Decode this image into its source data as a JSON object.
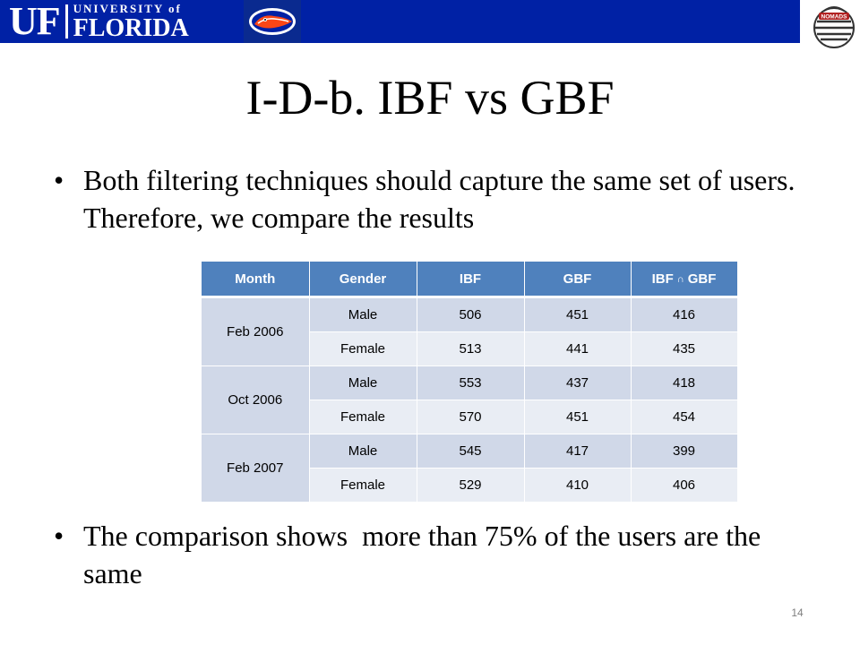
{
  "header": {
    "logo_mono": "UF",
    "logo_university": "UNIVERSITY of",
    "logo_florida": "FLORIDA",
    "logo_right": "NOMADS",
    "banner_color": "#0021a5",
    "gator_icon": "gator-logo-icon"
  },
  "slide": {
    "title": "I-D-b. IBF vs GBF",
    "bullets": [
      "Both filtering techniques should capture the same set of users. Therefore, we compare the results",
      "The comparison shows  more than 75% of the users are the same"
    ],
    "page_number": "14"
  },
  "table": {
    "headers": [
      "Month",
      "Gender",
      "IBF",
      "GBF",
      "IBF",
      "GBF"
    ],
    "header_color": "#4f81bd",
    "months": [
      "Feb 2006",
      "Oct 2006",
      "Feb 2007"
    ],
    "rows": [
      {
        "gender": "Male",
        "ibf": "506",
        "gbf": "451",
        "both": "416"
      },
      {
        "gender": "Female",
        "ibf": "513",
        "gbf": "441",
        "both": "435"
      },
      {
        "gender": "Male",
        "ibf": "553",
        "gbf": "437",
        "both": "418"
      },
      {
        "gender": "Female",
        "ibf": "570",
        "gbf": "451",
        "both": "454"
      },
      {
        "gender": "Male",
        "ibf": "545",
        "gbf": "417",
        "both": "399"
      },
      {
        "gender": "Female",
        "ibf": "529",
        "gbf": "410",
        "both": "406"
      }
    ]
  }
}
